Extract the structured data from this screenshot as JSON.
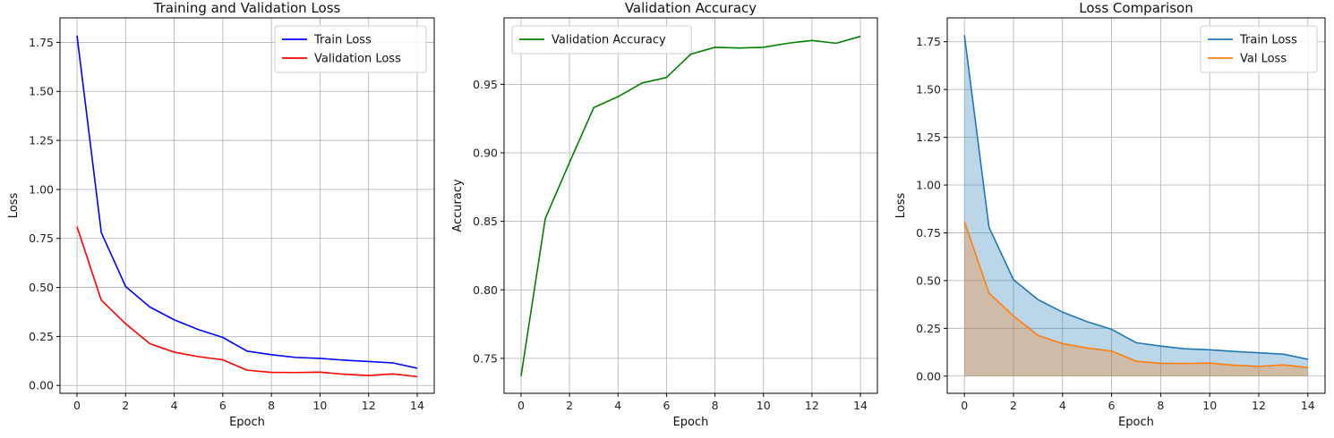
{
  "chart_data": [
    {
      "type": "line",
      "title": "Training and Validation Loss",
      "xlabel": "Epoch",
      "ylabel": "Loss",
      "x": [
        0,
        1,
        2,
        3,
        4,
        5,
        6,
        7,
        8,
        9,
        10,
        11,
        12,
        13,
        14
      ],
      "xlim": [
        -0.7,
        14.7
      ],
      "ylim": [
        -0.04,
        1.875
      ],
      "xticks": [
        0,
        2,
        4,
        6,
        8,
        10,
        12,
        14
      ],
      "xtick_labels": [
        "0",
        "2",
        "4",
        "6",
        "8",
        "10",
        "12",
        "14"
      ],
      "yticks": [
        0.0,
        0.25,
        0.5,
        0.75,
        1.0,
        1.25,
        1.5,
        1.75
      ],
      "ytick_labels": [
        "0.00",
        "0.25",
        "0.50",
        "0.75",
        "1.00",
        "1.25",
        "1.50",
        "1.75"
      ],
      "grid": true,
      "legend": "top-right",
      "series": [
        {
          "name": "Train Loss",
          "color": "#0000ff",
          "values": [
            1.785,
            0.78,
            0.505,
            0.4,
            0.335,
            0.285,
            0.245,
            0.175,
            0.157,
            0.143,
            0.138,
            0.129,
            0.122,
            0.115,
            0.088
          ]
        },
        {
          "name": "Validation Loss",
          "color": "#ff0000",
          "values": [
            0.81,
            0.435,
            0.315,
            0.213,
            0.17,
            0.147,
            0.131,
            0.078,
            0.067,
            0.066,
            0.068,
            0.057,
            0.051,
            0.059,
            0.045
          ]
        }
      ]
    },
    {
      "type": "line",
      "title": "Validation Accuracy",
      "xlabel": "Epoch",
      "ylabel": "Accuracy",
      "x": [
        0,
        1,
        2,
        3,
        4,
        5,
        6,
        7,
        8,
        9,
        10,
        11,
        12,
        13,
        14
      ],
      "xlim": [
        -0.7,
        14.7
      ],
      "ylim": [
        0.7245,
        0.9985
      ],
      "xticks": [
        0,
        2,
        4,
        6,
        8,
        10,
        12,
        14
      ],
      "xtick_labels": [
        "0",
        "2",
        "4",
        "6",
        "8",
        "10",
        "12",
        "14"
      ],
      "yticks": [
        0.75,
        0.8,
        0.85,
        0.9,
        0.95
      ],
      "ytick_labels": [
        "0.75",
        "0.80",
        "0.85",
        "0.90",
        "0.95"
      ],
      "grid": true,
      "legend": "top-left",
      "series": [
        {
          "name": "Validation Accuracy",
          "color": "#008000",
          "values": [
            0.737,
            0.852,
            0.893,
            0.933,
            0.941,
            0.951,
            0.955,
            0.972,
            0.977,
            0.9765,
            0.977,
            0.98,
            0.982,
            0.98,
            0.985
          ]
        }
      ]
    },
    {
      "type": "area",
      "title": "Loss Comparison",
      "xlabel": "Epoch",
      "ylabel": "Loss",
      "x": [
        0,
        1,
        2,
        3,
        4,
        5,
        6,
        7,
        8,
        9,
        10,
        11,
        12,
        13,
        14
      ],
      "xlim": [
        -0.7,
        14.7
      ],
      "ylim": [
        -0.09,
        1.875
      ],
      "xticks": [
        0,
        2,
        4,
        6,
        8,
        10,
        12,
        14
      ],
      "xtick_labels": [
        "0",
        "2",
        "4",
        "6",
        "8",
        "10",
        "12",
        "14"
      ],
      "yticks": [
        0.0,
        0.25,
        0.5,
        0.75,
        1.0,
        1.25,
        1.5,
        1.75
      ],
      "ytick_labels": [
        "0.00",
        "0.25",
        "0.50",
        "0.75",
        "1.00",
        "1.25",
        "1.50",
        "1.75"
      ],
      "grid": true,
      "legend": "top-right",
      "series": [
        {
          "name": "Train Loss",
          "color": "#1f77b4",
          "fill": "#1f77b4",
          "fill_opacity": 0.3,
          "values": [
            1.785,
            0.78,
            0.505,
            0.4,
            0.335,
            0.285,
            0.245,
            0.175,
            0.157,
            0.143,
            0.138,
            0.129,
            0.122,
            0.115,
            0.088
          ]
        },
        {
          "name": "Val Loss",
          "color": "#ff7f0e",
          "fill": "#ff7f0e",
          "fill_opacity": 0.3,
          "values": [
            0.81,
            0.435,
            0.315,
            0.213,
            0.17,
            0.147,
            0.131,
            0.078,
            0.067,
            0.066,
            0.068,
            0.057,
            0.051,
            0.059,
            0.045
          ]
        }
      ]
    }
  ]
}
